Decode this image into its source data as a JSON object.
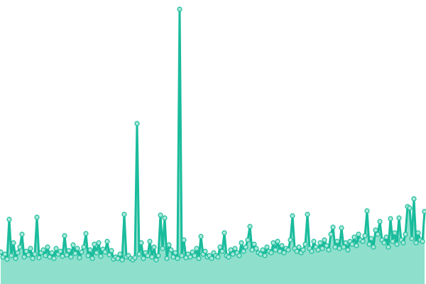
{
  "chart_data": {
    "type": "area",
    "title": "",
    "xlabel": "",
    "ylabel": "",
    "ylim": [
      0,
      400
    ],
    "grid": false,
    "markers": true,
    "colors": {
      "line": "#1abc9c",
      "fill": "#8ee0cc",
      "marker_fill": "#a8e8d8",
      "marker_stroke": "#1abc9c"
    },
    "values": [
      45,
      38,
      42,
      35,
      91,
      40,
      58,
      36,
      44,
      52,
      70,
      38,
      46,
      41,
      50,
      36,
      42,
      94,
      37,
      44,
      48,
      40,
      52,
      38,
      44,
      36,
      50,
      42,
      46,
      39,
      68,
      41,
      47,
      38,
      55,
      43,
      50,
      37,
      45,
      52,
      71,
      40,
      48,
      36,
      56,
      44,
      58,
      39,
      49,
      45,
      60,
      41,
      47,
      35,
      38,
      36,
      42,
      34,
      98,
      38,
      40,
      36,
      34,
      37,
      226,
      42,
      58,
      36,
      44,
      40,
      60,
      38,
      52,
      34,
      40,
      97,
      50,
      93,
      36,
      55,
      48,
      38,
      44,
      36,
      387,
      40,
      62,
      37,
      42,
      38,
      45,
      40,
      50,
      36,
      67,
      42,
      46,
      38,
      40,
      36,
      44,
      40,
      38,
      52,
      46,
      72,
      40,
      38,
      48,
      42,
      50,
      44,
      40,
      58,
      46,
      52,
      62,
      81,
      48,
      56,
      50,
      44,
      42,
      48,
      40,
      52,
      46,
      44,
      58,
      48,
      60,
      46,
      54,
      44,
      50,
      48,
      62,
      96,
      50,
      46,
      52,
      44,
      48,
      56,
      98,
      50,
      46,
      60,
      52,
      48,
      58,
      50,
      62,
      54,
      48,
      70,
      80,
      52,
      60,
      50,
      79,
      52,
      58,
      48,
      60,
      56,
      66,
      54,
      70,
      62,
      60,
      68,
      103,
      56,
      64,
      52,
      76,
      70,
      88,
      62,
      58,
      66,
      52,
      92,
      60,
      72,
      56,
      93,
      62,
      58,
      70,
      109,
      107,
      64,
      120,
      58,
      72,
      62,
      60,
      102
    ]
  }
}
